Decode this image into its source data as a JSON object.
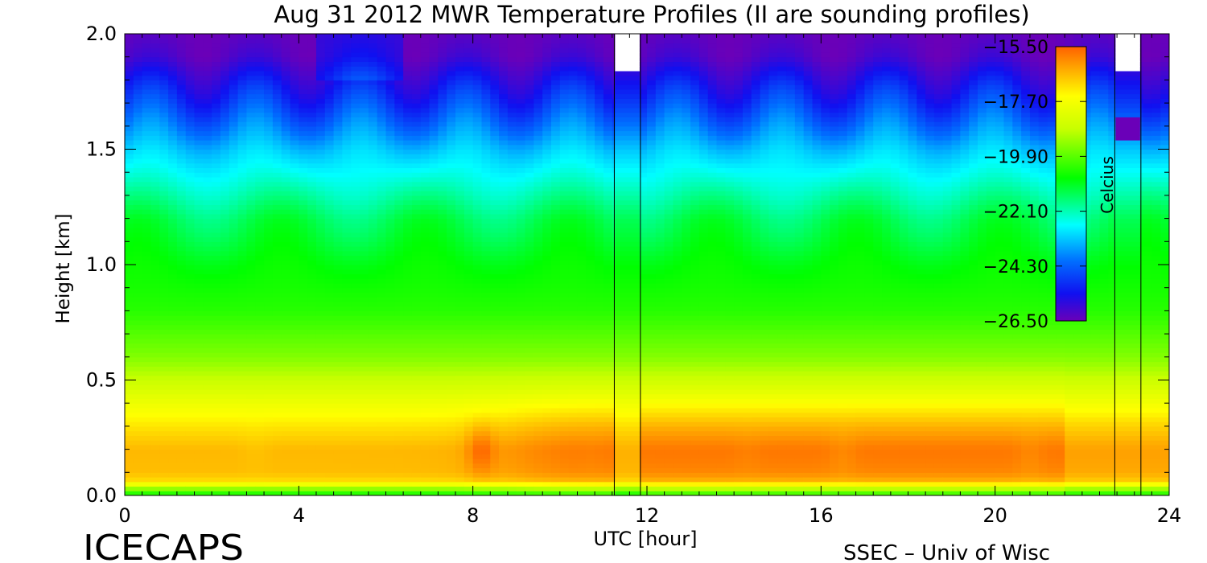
{
  "chart_data": {
    "type": "heatmap",
    "title": "Aug 31 2012 MWR Temperature Profiles (II are sounding profiles)",
    "xlabel": "UTC [hour]",
    "ylabel": "Height [km]",
    "xlim": [
      0,
      24
    ],
    "ylim": [
      0.0,
      2.0
    ],
    "x_ticks": [
      "0",
      "4",
      "8",
      "12",
      "16",
      "20",
      "24"
    ],
    "y_ticks": [
      "0.0",
      "0.5",
      "1.0",
      "1.5",
      "2.0"
    ],
    "colorbar": {
      "label": "Celcius",
      "min": -26.5,
      "max": -15.5,
      "ticks": [
        "-15.50",
        "-17.70",
        "-19.90",
        "-22.10",
        "-24.30",
        "-26.50"
      ]
    },
    "sounding_profiles": [
      {
        "start": 11.25,
        "end": 11.85
      },
      {
        "start": 22.75,
        "end": 23.35
      }
    ],
    "warm_maxima": [
      {
        "x": 2.0,
        "y": 0.2,
        "value": -16.6
      },
      {
        "x": 3.0,
        "y": 0.2,
        "value": -16.7
      },
      {
        "x": 8.2,
        "y": 0.2,
        "value": -15.6
      },
      {
        "x": 10.7,
        "y": 0.18,
        "value": -15.9
      },
      {
        "x": 14.3,
        "y": 0.18,
        "value": -15.9
      },
      {
        "x": 16.5,
        "y": 0.18,
        "value": -16.0
      },
      {
        "x": 20.8,
        "y": 0.17,
        "value": -16.0
      }
    ]
  },
  "footer": {
    "left": "ICECAPS",
    "right": "SSEC – Univ of Wisc"
  }
}
